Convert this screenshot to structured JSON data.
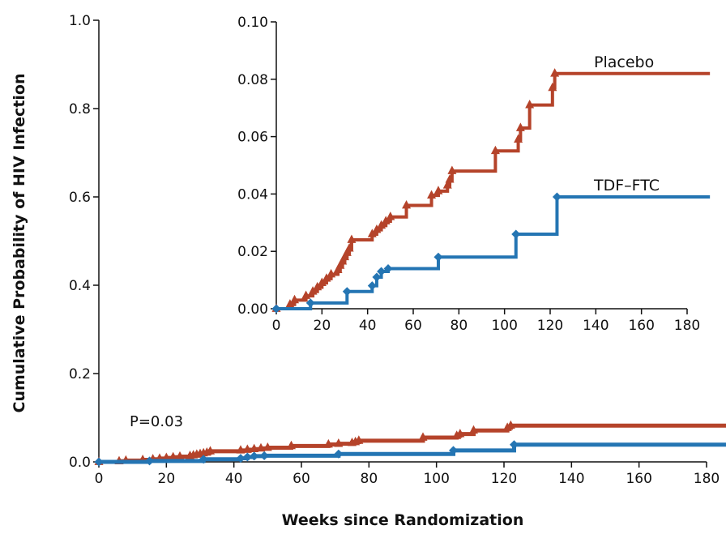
{
  "chart_data": {
    "type": "line",
    "xlabel": "Weeks since Randomization",
    "ylabel": "Cumulative Probability of HIV Infection",
    "annotation": "P=0.03",
    "colors": {
      "placebo": "#b5432a",
      "tdf": "#2475b3"
    },
    "main": {
      "xlim": [
        0,
        180
      ],
      "ylim": [
        0,
        1.0
      ],
      "xticks": [
        0,
        20,
        40,
        60,
        80,
        100,
        120,
        140,
        160,
        180
      ],
      "yticks": [
        0.0,
        0.2,
        0.4,
        0.6,
        0.8,
        1.0
      ],
      "xtick_labels": [
        "0",
        "20",
        "40",
        "60",
        "80",
        "100",
        "120",
        "140",
        "160",
        "180"
      ],
      "ytick_labels": [
        "0.0",
        "0.2",
        "0.4",
        "0.6",
        "0.8",
        "1.0"
      ]
    },
    "inset": {
      "xlim": [
        0,
        180
      ],
      "ylim": [
        0,
        0.1
      ],
      "xticks": [
        0,
        20,
        40,
        60,
        80,
        100,
        120,
        140,
        160,
        180
      ],
      "yticks": [
        0.0,
        0.02,
        0.04,
        0.06,
        0.08,
        0.1
      ],
      "xtick_labels": [
        "0",
        "20",
        "40",
        "60",
        "80",
        "100",
        "120",
        "140",
        "160",
        "180"
      ],
      "ytick_labels": [
        "0.00",
        "0.02",
        "0.04",
        "0.06",
        "0.08",
        "0.10"
      ]
    },
    "series": [
      {
        "name": "Placebo",
        "key": "placebo",
        "marker": "triangle",
        "x": [
          0,
          6,
          8,
          13,
          16,
          18,
          20,
          22,
          24,
          27,
          28,
          29,
          30,
          31,
          32,
          33,
          42,
          44,
          46,
          48,
          50,
          57,
          68,
          71,
          75,
          76,
          77,
          96,
          106,
          107,
          111,
          121,
          122,
          190
        ],
        "y": [
          0,
          0.0015,
          0.003,
          0.0045,
          0.006,
          0.0075,
          0.009,
          0.0105,
          0.012,
          0.0135,
          0.015,
          0.0165,
          0.018,
          0.0195,
          0.021,
          0.024,
          0.026,
          0.0275,
          0.029,
          0.0305,
          0.032,
          0.036,
          0.0395,
          0.041,
          0.043,
          0.045,
          0.048,
          0.055,
          0.059,
          0.063,
          0.071,
          0.077,
          0.082,
          0.082
        ],
        "markers_x": [
          0,
          6,
          8,
          13,
          16,
          18,
          20,
          22,
          24,
          27,
          28,
          29,
          30,
          31,
          32,
          33,
          42,
          44,
          46,
          48,
          50,
          57,
          68,
          71,
          75,
          76,
          77,
          96,
          106,
          107,
          111,
          121,
          122
        ]
      },
      {
        "name": "TDF–FTC",
        "key": "tdf",
        "marker": "diamond",
        "x": [
          0,
          15,
          31,
          42,
          44,
          46,
          49,
          71,
          105,
          123,
          190
        ],
        "y": [
          0,
          0.002,
          0.006,
          0.008,
          0.011,
          0.013,
          0.014,
          0.018,
          0.026,
          0.039,
          0.039
        ],
        "markers_x": [
          0,
          15,
          31,
          42,
          44,
          46,
          49,
          71,
          105,
          123
        ]
      }
    ]
  }
}
